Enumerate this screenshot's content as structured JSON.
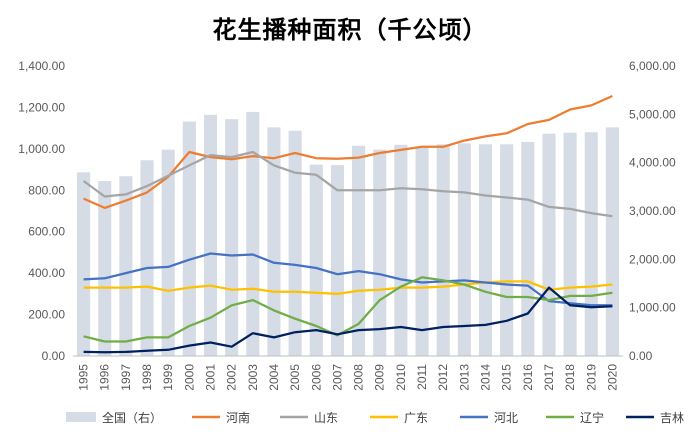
{
  "chart_data": {
    "type": "bar+line",
    "title": "花生播种面积（千公顷）",
    "categories": [
      "1995",
      "1996",
      "1997",
      "1998",
      "1999",
      "2000",
      "2001",
      "2002",
      "2003",
      "2004",
      "2005",
      "2006",
      "2007",
      "2008",
      "2009",
      "2010",
      "2011",
      "2012",
      "2013",
      "2014",
      "2015",
      "2016",
      "2017",
      "2018",
      "2019",
      "2020"
    ],
    "left_axis": {
      "min": 0,
      "max": 1400,
      "ticks": [
        "0.00",
        "200.00",
        "400.00",
        "600.00",
        "800.00",
        "1,000.00",
        "1,200.00",
        "1,400.00"
      ],
      "tick_values": [
        0,
        200,
        400,
        600,
        800,
        1000,
        1200,
        1400
      ]
    },
    "right_axis": {
      "min": 0,
      "max": 6000,
      "ticks": [
        "0.00",
        "1,000.00",
        "2,000.00",
        "3,000.00",
        "4,000.00",
        "5,000.00",
        "6,000.00"
      ],
      "tick_values": [
        0,
        1000,
        2000,
        3000,
        4000,
        5000,
        6000
      ]
    },
    "bar_series": {
      "name": "全国（右）",
      "color": "#D6DCE5",
      "values": [
        3800,
        3620,
        3720,
        4050,
        4270,
        4850,
        4990,
        4900,
        5050,
        4730,
        4660,
        3960,
        3950,
        4350,
        4270,
        4370,
        4330,
        4380,
        4400,
        4380,
        4380,
        4430,
        4600,
        4620,
        4630,
        4730
      ]
    },
    "line_series": [
      {
        "name": "河南",
        "color": "#ED7D31",
        "values": [
          760,
          715,
          750,
          790,
          865,
          985,
          960,
          950,
          965,
          955,
          980,
          955,
          952,
          958,
          980,
          995,
          1010,
          1010,
          1040,
          1060,
          1075,
          1120,
          1140,
          1190,
          1210,
          1255
        ]
      },
      {
        "name": "山东",
        "color": "#A5A5A5",
        "values": [
          845,
          770,
          780,
          820,
          870,
          920,
          970,
          960,
          985,
          920,
          885,
          875,
          800,
          800,
          800,
          810,
          805,
          795,
          790,
          775,
          765,
          755,
          720,
          710,
          690,
          675
        ]
      },
      {
        "name": "广东",
        "color": "#FFC000",
        "values": [
          330,
          330,
          330,
          335,
          315,
          330,
          340,
          320,
          325,
          310,
          310,
          305,
          300,
          315,
          320,
          330,
          330,
          335,
          345,
          355,
          360,
          360,
          320,
          330,
          335,
          345
        ]
      },
      {
        "name": "河北",
        "color": "#4472C4",
        "values": [
          370,
          375,
          400,
          425,
          430,
          465,
          495,
          485,
          490,
          450,
          440,
          425,
          395,
          410,
          395,
          370,
          355,
          360,
          365,
          355,
          345,
          340,
          265,
          255,
          245,
          245
        ]
      },
      {
        "name": "辽宁",
        "color": "#70AD47",
        "values": [
          95,
          70,
          70,
          90,
          90,
          145,
          185,
          245,
          270,
          220,
          180,
          145,
          100,
          155,
          270,
          335,
          380,
          365,
          345,
          310,
          285,
          285,
          270,
          290,
          290,
          305
        ]
      },
      {
        "name": "吉林",
        "color": "#002060",
        "values": [
          20,
          18,
          20,
          25,
          30,
          50,
          65,
          45,
          110,
          90,
          115,
          125,
          105,
          125,
          130,
          140,
          125,
          140,
          145,
          150,
          170,
          205,
          330,
          245,
          235,
          240
        ]
      }
    ]
  }
}
